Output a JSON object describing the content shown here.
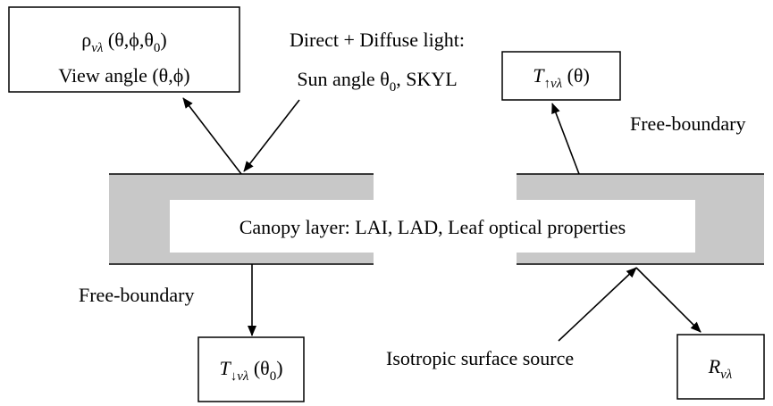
{
  "texts": [
    [
      {
        "t": "ρ"
      },
      {
        "t": "vλ",
        "sub": true,
        "italic": true
      },
      {
        "t": " (θ,ϕ,θ"
      },
      {
        "t": "0",
        "sub": true
      },
      {
        "t": ")"
      }
    ],
    [
      {
        "t": "View angle (θ,ϕ)"
      }
    ],
    [
      {
        "t": "Direct + Diffuse light:"
      }
    ],
    [
      {
        "t": "Sun angle θ"
      },
      {
        "t": "0",
        "sub": true
      },
      {
        "t": ", SKYL"
      }
    ],
    [
      {
        "t": "T",
        "italic": true
      },
      {
        "t": "↑vλ",
        "sub": true,
        "italic": true
      },
      {
        "t": " (θ)"
      }
    ],
    [
      {
        "t": "Free-boundary"
      }
    ],
    [
      {
        "t": "Canopy layer: LAI, LAD, Leaf optical properties"
      }
    ],
    [
      {
        "t": "Free-boundary"
      }
    ],
    [
      {
        "t": "T",
        "italic": true
      },
      {
        "t": "↓vλ",
        "sub": true,
        "italic": true
      },
      {
        "t": " (θ"
      },
      {
        "t": "0",
        "sub": true
      },
      {
        "t": ")"
      }
    ],
    [
      {
        "t": "Isotropic surface source"
      }
    ],
    [
      {
        "t": "R",
        "italic": true
      },
      {
        "t": "vλ",
        "sub": true,
        "italic": true
      }
    ]
  ]
}
